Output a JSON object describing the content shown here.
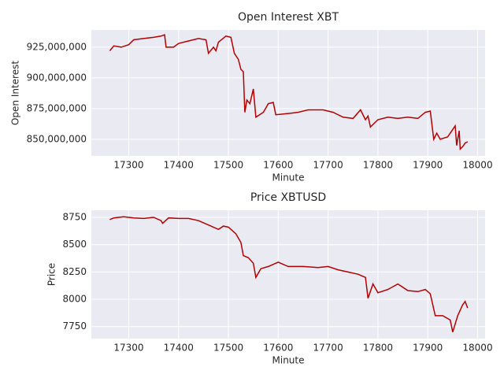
{
  "chart_data": [
    {
      "type": "line",
      "title": "Open Interest XBT",
      "xlabel": "Minute",
      "ylabel": "Open Interest",
      "x": [
        17262,
        17270,
        17285,
        17300,
        17310,
        17330,
        17350,
        17365,
        17372,
        17375,
        17390,
        17400,
        17420,
        17440,
        17455,
        17460,
        17470,
        17475,
        17480,
        17495,
        17505,
        17512,
        17520,
        17525,
        17530,
        17533,
        17537,
        17543,
        17550,
        17555,
        17570,
        17580,
        17590,
        17595,
        17620,
        17640,
        17660,
        17690,
        17710,
        17730,
        17750,
        17765,
        17775,
        17780,
        17785,
        17800,
        17820,
        17840,
        17860,
        17880,
        17895,
        17905,
        17912,
        17918,
        17925,
        17940,
        17950,
        17955,
        17958,
        17963,
        17965,
        17970,
        17975,
        17980
      ],
      "series": [
        {
          "name": "Open Interest",
          "color": "#b40000",
          "values": [
            922000000,
            926000000,
            925000000,
            927000000,
            931000000,
            932000000,
            933000000,
            934000000,
            935000000,
            925000000,
            925000000,
            928000000,
            930000000,
            932000000,
            931000000,
            920000000,
            925000000,
            922000000,
            929000000,
            934000000,
            933000000,
            920000000,
            915000000,
            907000000,
            905000000,
            872000000,
            882000000,
            879000000,
            891000000,
            868000000,
            872000000,
            879000000,
            880000000,
            870000000,
            871000000,
            872000000,
            874000000,
            874000000,
            872000000,
            868000000,
            867000000,
            874000000,
            866000000,
            869000000,
            860000000,
            866000000,
            868000000,
            867000000,
            868000000,
            867000000,
            872000000,
            873000000,
            850000000,
            855000000,
            850000000,
            852000000,
            858000000,
            861000000,
            845000000,
            857000000,
            842000000,
            844000000,
            847000000,
            848000000
          ]
        }
      ],
      "xlim": [
        17225,
        18015
      ],
      "xticks": [
        17300,
        17400,
        17500,
        17600,
        17700,
        17800,
        17900,
        18000
      ],
      "ylim": [
        836500000,
        939000000
      ],
      "yticks": [
        {
          "value": 850000000,
          "label": "850,000,000"
        },
        {
          "value": 875000000,
          "label": "875,000,000"
        },
        {
          "value": 900000000,
          "label": "900,000,000"
        },
        {
          "value": 925000000,
          "label": "925,000,000"
        }
      ],
      "grid": true
    },
    {
      "type": "line",
      "title": "Price XBTUSD",
      "xlabel": "Minute",
      "ylabel": "Price",
      "x": [
        17262,
        17270,
        17290,
        17310,
        17330,
        17350,
        17365,
        17368,
        17380,
        17400,
        17420,
        17440,
        17460,
        17480,
        17490,
        17500,
        17515,
        17525,
        17530,
        17540,
        17550,
        17555,
        17565,
        17580,
        17590,
        17600,
        17620,
        17650,
        17680,
        17700,
        17720,
        17740,
        17760,
        17775,
        17780,
        17790,
        17800,
        17820,
        17840,
        17860,
        17880,
        17895,
        17905,
        17915,
        17930,
        17945,
        17950,
        17960,
        17970,
        17975,
        17980
      ],
      "series": [
        {
          "name": "Price",
          "color": "#b40000",
          "values": [
            8730,
            8745,
            8755,
            8745,
            8740,
            8750,
            8720,
            8695,
            8745,
            8740,
            8740,
            8720,
            8680,
            8640,
            8670,
            8660,
            8600,
            8520,
            8400,
            8380,
            8330,
            8200,
            8280,
            8300,
            8320,
            8340,
            8300,
            8300,
            8290,
            8300,
            8270,
            8250,
            8230,
            8200,
            8010,
            8140,
            8060,
            8090,
            8140,
            8080,
            8070,
            8090,
            8050,
            7850,
            7850,
            7810,
            7700,
            7850,
            7950,
            7980,
            7920
          ]
        }
      ],
      "xlim": [
        17225,
        18015
      ],
      "xticks": [
        17300,
        17400,
        17500,
        17600,
        17700,
        17800,
        17900,
        18000
      ],
      "ylim": [
        7640,
        8815
      ],
      "yticks": [
        7750,
        8000,
        8250,
        8500,
        8750
      ],
      "grid": true
    }
  ]
}
